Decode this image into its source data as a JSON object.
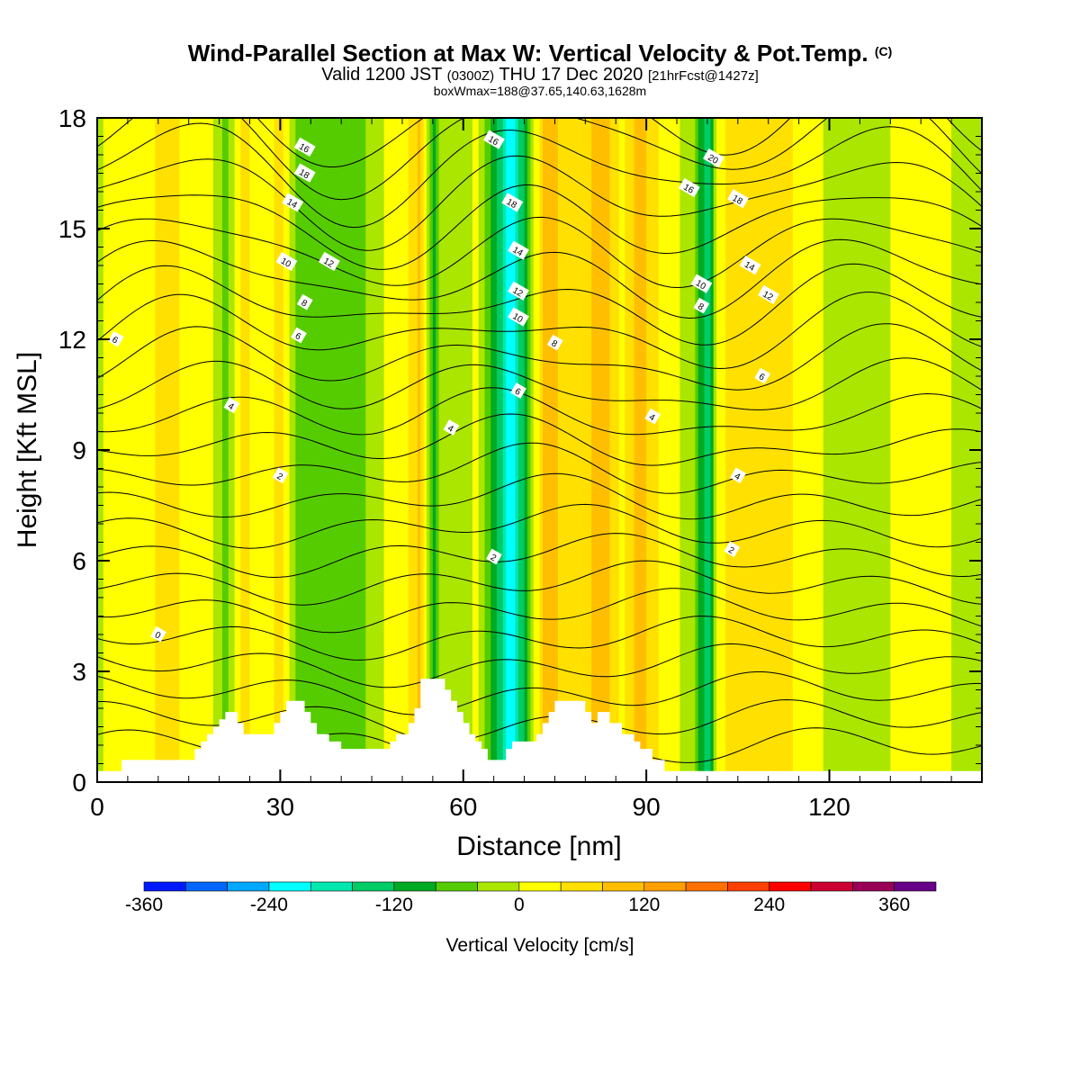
{
  "title": "Wind-Parallel Section at Max W: Vertical Velocity & Pot.Temp.",
  "title_mark": "(C)",
  "subtitle": {
    "main_a": "Valid 1200 JST ",
    "utc": "(0300Z)",
    "main_b": " THU 17 Dec 2020 ",
    "fcst": "[21hrFcst@1427z]"
  },
  "box_line": "boxWmax=188@37.65,140.63,1628m",
  "chart_data": {
    "type": "heatmap",
    "xlabel": "Distance [nm]",
    "ylabel": "Height [Kft MSL]",
    "xlim": [
      0,
      145
    ],
    "ylim": [
      0,
      18
    ],
    "x_ticks": [
      0,
      30,
      60,
      90,
      120
    ],
    "y_ticks": [
      0,
      3,
      6,
      9,
      12,
      15,
      18
    ],
    "colorbar": {
      "title": "Vertical Velocity [cm/s]",
      "bins": [
        -360,
        -320,
        -280,
        -240,
        -200,
        -160,
        -120,
        -80,
        -40,
        0,
        40,
        80,
        120,
        160,
        200,
        240,
        280,
        320,
        360,
        400
      ],
      "colors": [
        "#0019ff",
        "#0066ff",
        "#00a8ff",
        "#00ffff",
        "#00e8b0",
        "#00cc66",
        "#00aa22",
        "#55cc00",
        "#aae600",
        "#ffff00",
        "#ffe000",
        "#ffbf00",
        "#ff9f00",
        "#ff7000",
        "#ff4000",
        "#ff0000",
        "#cc0030",
        "#990055",
        "#660088"
      ],
      "tick_values": [
        -360,
        -240,
        -120,
        0,
        120,
        240,
        360
      ]
    },
    "vertical_velocity_profile": {
      "x": [
        0,
        2,
        5,
        8,
        12,
        15,
        18,
        21,
        24,
        27,
        30,
        33,
        36,
        40,
        44,
        48,
        51,
        53,
        55,
        57,
        60,
        62,
        65,
        68,
        71,
        74,
        77,
        80,
        83,
        86,
        89,
        92,
        95,
        98,
        100,
        102,
        105,
        108,
        112,
        116,
        120,
        125,
        130,
        135,
        140,
        145
      ],
      "w": [
        -20,
        20,
        0,
        30,
        60,
        20,
        40,
        -60,
        50,
        20,
        50,
        -70,
        -50,
        -60,
        -40,
        10,
        40,
        90,
        -100,
        0,
        -40,
        20,
        -100,
        -240,
        -40,
        120,
        40,
        60,
        120,
        20,
        100,
        40,
        10,
        -40,
        -150,
        30,
        60,
        80,
        50,
        30,
        -10,
        -20,
        0,
        20,
        0,
        -30
      ]
    },
    "potential_temperature_contours": {
      "levels": [
        0,
        2,
        4,
        6,
        8,
        10,
        12,
        14,
        16,
        18,
        20
      ],
      "labels": [
        {
          "text": "0",
          "x": 10,
          "y": 4.0
        },
        {
          "text": "2",
          "x": 30,
          "y": 8.3
        },
        {
          "text": "2",
          "x": 65,
          "y": 6.1
        },
        {
          "text": "2",
          "x": 104,
          "y": 6.3
        },
        {
          "text": "4",
          "x": 22,
          "y": 10.2
        },
        {
          "text": "4",
          "x": 58,
          "y": 9.6
        },
        {
          "text": "4",
          "x": 91,
          "y": 9.9
        },
        {
          "text": "4",
          "x": 105,
          "y": 8.3
        },
        {
          "text": "6",
          "x": 3,
          "y": 12.0
        },
        {
          "text": "6",
          "x": 33,
          "y": 12.1
        },
        {
          "text": "6",
          "x": 69,
          "y": 10.6
        },
        {
          "text": "6",
          "x": 109,
          "y": 11.0
        },
        {
          "text": "8",
          "x": 34,
          "y": 13.0
        },
        {
          "text": "8",
          "x": 75,
          "y": 11.9
        },
        {
          "text": "8",
          "x": 99,
          "y": 12.9
        },
        {
          "text": "10",
          "x": 31,
          "y": 14.1
        },
        {
          "text": "10",
          "x": 69,
          "y": 12.6
        },
        {
          "text": "10",
          "x": 99,
          "y": 13.5
        },
        {
          "text": "12",
          "x": 38,
          "y": 14.1
        },
        {
          "text": "12",
          "x": 69,
          "y": 13.3
        },
        {
          "text": "12",
          "x": 110,
          "y": 13.2
        },
        {
          "text": "14",
          "x": 32,
          "y": 15.7
        },
        {
          "text": "14",
          "x": 69,
          "y": 14.4
        },
        {
          "text": "14",
          "x": 107,
          "y": 14.0
        },
        {
          "text": "16",
          "x": 34,
          "y": 17.2
        },
        {
          "text": "16",
          "x": 65,
          "y": 17.4
        },
        {
          "text": "16",
          "x": 97,
          "y": 16.1
        },
        {
          "text": "18",
          "x": 34,
          "y": 16.5
        },
        {
          "text": "18",
          "x": 68,
          "y": 15.7
        },
        {
          "text": "18",
          "x": 105,
          "y": 15.8
        },
        {
          "text": "20",
          "x": 101,
          "y": 16.9
        }
      ]
    },
    "terrain": {
      "x": [
        0,
        4,
        15,
        16,
        17,
        18,
        19,
        20,
        21,
        22,
        23,
        24,
        28,
        29,
        30,
        31,
        33,
        34,
        35,
        36,
        37,
        38,
        40,
        47,
        48,
        49,
        50,
        51,
        52,
        53,
        56,
        57,
        58,
        59,
        60,
        61,
        62,
        63,
        64,
        65,
        67,
        68,
        70,
        71,
        72,
        73,
        74,
        75,
        76,
        79,
        80,
        81,
        82,
        83,
        84,
        85,
        86,
        87,
        88,
        89,
        90,
        91,
        92,
        93,
        94,
        96,
        97,
        145
      ],
      "y": [
        0.3,
        0.6,
        0.6,
        0.9,
        1.1,
        1.3,
        1.5,
        1.7,
        1.9,
        1.9,
        1.6,
        1.3,
        1.3,
        1.6,
        1.9,
        2.2,
        2.2,
        1.9,
        1.6,
        1.3,
        1.3,
        1.1,
        0.9,
        0.9,
        1.1,
        1.3,
        1.3,
        1.6,
        2.0,
        2.8,
        2.8,
        2.5,
        2.2,
        1.9,
        1.6,
        1.3,
        1.1,
        0.9,
        0.6,
        0.6,
        0.9,
        1.1,
        1.1,
        1.1,
        1.3,
        1.6,
        1.9,
        2.2,
        2.2,
        2.2,
        1.9,
        1.6,
        1.9,
        1.9,
        1.6,
        1.6,
        1.3,
        1.3,
        1.1,
        0.9,
        0.9,
        0.6,
        0.6,
        0.3,
        0.3,
        0.3,
        0.3,
        0.3
      ]
    }
  }
}
